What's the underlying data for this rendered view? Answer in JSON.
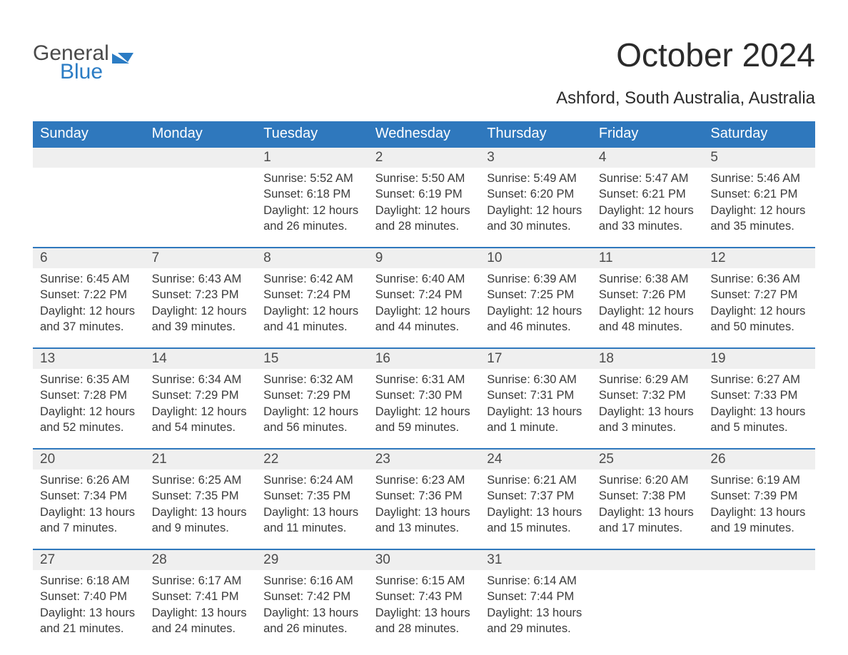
{
  "brand": {
    "general": "General",
    "blue": "Blue",
    "mark_color": "#2b7cc4"
  },
  "title": "October 2024",
  "location": "Ashford, South Australia, Australia",
  "colors": {
    "header_bg": "#2f78bd",
    "header_text": "#ffffff",
    "daynum_bg": "#efefef",
    "daynum_border": "#2f78bd",
    "body_text": "#3a3a3a",
    "page_bg": "#ffffff"
  },
  "typography": {
    "title_fontsize": 46,
    "location_fontsize": 24,
    "dayheader_fontsize": 20,
    "daynum_fontsize": 19,
    "body_fontsize": 16.5
  },
  "day_headers": [
    "Sunday",
    "Monday",
    "Tuesday",
    "Wednesday",
    "Thursday",
    "Friday",
    "Saturday"
  ],
  "weeks": [
    [
      null,
      null,
      {
        "n": "1",
        "sunrise": "Sunrise: 5:52 AM",
        "sunset": "Sunset: 6:18 PM",
        "d1": "Daylight: 12 hours",
        "d2": "and 26 minutes."
      },
      {
        "n": "2",
        "sunrise": "Sunrise: 5:50 AM",
        "sunset": "Sunset: 6:19 PM",
        "d1": "Daylight: 12 hours",
        "d2": "and 28 minutes."
      },
      {
        "n": "3",
        "sunrise": "Sunrise: 5:49 AM",
        "sunset": "Sunset: 6:20 PM",
        "d1": "Daylight: 12 hours",
        "d2": "and 30 minutes."
      },
      {
        "n": "4",
        "sunrise": "Sunrise: 5:47 AM",
        "sunset": "Sunset: 6:21 PM",
        "d1": "Daylight: 12 hours",
        "d2": "and 33 minutes."
      },
      {
        "n": "5",
        "sunrise": "Sunrise: 5:46 AM",
        "sunset": "Sunset: 6:21 PM",
        "d1": "Daylight: 12 hours",
        "d2": "and 35 minutes."
      }
    ],
    [
      {
        "n": "6",
        "sunrise": "Sunrise: 6:45 AM",
        "sunset": "Sunset: 7:22 PM",
        "d1": "Daylight: 12 hours",
        "d2": "and 37 minutes."
      },
      {
        "n": "7",
        "sunrise": "Sunrise: 6:43 AM",
        "sunset": "Sunset: 7:23 PM",
        "d1": "Daylight: 12 hours",
        "d2": "and 39 minutes."
      },
      {
        "n": "8",
        "sunrise": "Sunrise: 6:42 AM",
        "sunset": "Sunset: 7:24 PM",
        "d1": "Daylight: 12 hours",
        "d2": "and 41 minutes."
      },
      {
        "n": "9",
        "sunrise": "Sunrise: 6:40 AM",
        "sunset": "Sunset: 7:24 PM",
        "d1": "Daylight: 12 hours",
        "d2": "and 44 minutes."
      },
      {
        "n": "10",
        "sunrise": "Sunrise: 6:39 AM",
        "sunset": "Sunset: 7:25 PM",
        "d1": "Daylight: 12 hours",
        "d2": "and 46 minutes."
      },
      {
        "n": "11",
        "sunrise": "Sunrise: 6:38 AM",
        "sunset": "Sunset: 7:26 PM",
        "d1": "Daylight: 12 hours",
        "d2": "and 48 minutes."
      },
      {
        "n": "12",
        "sunrise": "Sunrise: 6:36 AM",
        "sunset": "Sunset: 7:27 PM",
        "d1": "Daylight: 12 hours",
        "d2": "and 50 minutes."
      }
    ],
    [
      {
        "n": "13",
        "sunrise": "Sunrise: 6:35 AM",
        "sunset": "Sunset: 7:28 PM",
        "d1": "Daylight: 12 hours",
        "d2": "and 52 minutes."
      },
      {
        "n": "14",
        "sunrise": "Sunrise: 6:34 AM",
        "sunset": "Sunset: 7:29 PM",
        "d1": "Daylight: 12 hours",
        "d2": "and 54 minutes."
      },
      {
        "n": "15",
        "sunrise": "Sunrise: 6:32 AM",
        "sunset": "Sunset: 7:29 PM",
        "d1": "Daylight: 12 hours",
        "d2": "and 56 minutes."
      },
      {
        "n": "16",
        "sunrise": "Sunrise: 6:31 AM",
        "sunset": "Sunset: 7:30 PM",
        "d1": "Daylight: 12 hours",
        "d2": "and 59 minutes."
      },
      {
        "n": "17",
        "sunrise": "Sunrise: 6:30 AM",
        "sunset": "Sunset: 7:31 PM",
        "d1": "Daylight: 13 hours",
        "d2": "and 1 minute."
      },
      {
        "n": "18",
        "sunrise": "Sunrise: 6:29 AM",
        "sunset": "Sunset: 7:32 PM",
        "d1": "Daylight: 13 hours",
        "d2": "and 3 minutes."
      },
      {
        "n": "19",
        "sunrise": "Sunrise: 6:27 AM",
        "sunset": "Sunset: 7:33 PM",
        "d1": "Daylight: 13 hours",
        "d2": "and 5 minutes."
      }
    ],
    [
      {
        "n": "20",
        "sunrise": "Sunrise: 6:26 AM",
        "sunset": "Sunset: 7:34 PM",
        "d1": "Daylight: 13 hours",
        "d2": "and 7 minutes."
      },
      {
        "n": "21",
        "sunrise": "Sunrise: 6:25 AM",
        "sunset": "Sunset: 7:35 PM",
        "d1": "Daylight: 13 hours",
        "d2": "and 9 minutes."
      },
      {
        "n": "22",
        "sunrise": "Sunrise: 6:24 AM",
        "sunset": "Sunset: 7:35 PM",
        "d1": "Daylight: 13 hours",
        "d2": "and 11 minutes."
      },
      {
        "n": "23",
        "sunrise": "Sunrise: 6:23 AM",
        "sunset": "Sunset: 7:36 PM",
        "d1": "Daylight: 13 hours",
        "d2": "and 13 minutes."
      },
      {
        "n": "24",
        "sunrise": "Sunrise: 6:21 AM",
        "sunset": "Sunset: 7:37 PM",
        "d1": "Daylight: 13 hours",
        "d2": "and 15 minutes."
      },
      {
        "n": "25",
        "sunrise": "Sunrise: 6:20 AM",
        "sunset": "Sunset: 7:38 PM",
        "d1": "Daylight: 13 hours",
        "d2": "and 17 minutes."
      },
      {
        "n": "26",
        "sunrise": "Sunrise: 6:19 AM",
        "sunset": "Sunset: 7:39 PM",
        "d1": "Daylight: 13 hours",
        "d2": "and 19 minutes."
      }
    ],
    [
      {
        "n": "27",
        "sunrise": "Sunrise: 6:18 AM",
        "sunset": "Sunset: 7:40 PM",
        "d1": "Daylight: 13 hours",
        "d2": "and 21 minutes."
      },
      {
        "n": "28",
        "sunrise": "Sunrise: 6:17 AM",
        "sunset": "Sunset: 7:41 PM",
        "d1": "Daylight: 13 hours",
        "d2": "and 24 minutes."
      },
      {
        "n": "29",
        "sunrise": "Sunrise: 6:16 AM",
        "sunset": "Sunset: 7:42 PM",
        "d1": "Daylight: 13 hours",
        "d2": "and 26 minutes."
      },
      {
        "n": "30",
        "sunrise": "Sunrise: 6:15 AM",
        "sunset": "Sunset: 7:43 PM",
        "d1": "Daylight: 13 hours",
        "d2": "and 28 minutes."
      },
      {
        "n": "31",
        "sunrise": "Sunrise: 6:14 AM",
        "sunset": "Sunset: 7:44 PM",
        "d1": "Daylight: 13 hours",
        "d2": "and 29 minutes."
      },
      null,
      null
    ]
  ]
}
